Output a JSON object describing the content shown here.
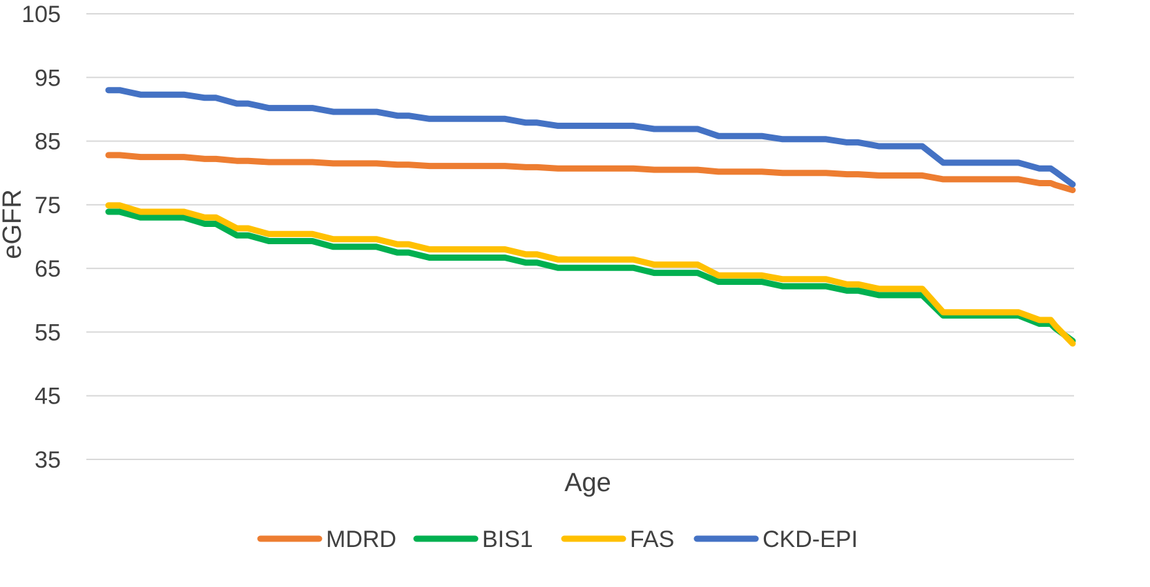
{
  "chart_data": {
    "type": "line",
    "title": "",
    "xlabel": "Age",
    "ylabel": "eGFR",
    "ylim": [
      35,
      105
    ],
    "yticks": [
      105,
      95,
      85,
      75,
      65,
      55,
      45,
      35
    ],
    "grid": true,
    "legend_position": "bottom",
    "x": [
      0,
      1,
      2,
      3,
      4,
      5,
      6,
      7,
      8,
      9,
      10,
      11,
      12,
      13,
      14,
      15,
      16,
      17,
      18,
      19,
      20,
      21,
      22,
      23,
      24,
      25,
      26,
      27,
      28,
      29
    ],
    "series": [
      {
        "name": "MDRD",
        "color": "#ED7D31",
        "values": [
          82.8,
          82.5,
          82.5,
          82.2,
          81.9,
          81.7,
          81.7,
          81.5,
          81.5,
          81.3,
          81.1,
          81.1,
          81.1,
          80.9,
          80.7,
          80.7,
          80.7,
          80.5,
          80.5,
          80.2,
          80.2,
          80.0,
          80.0,
          79.8,
          79.6,
          79.6,
          79.0,
          79.0,
          79.0,
          78.4
        ]
      },
      {
        "name": "BIS1",
        "color": "#00B050",
        "values": [
          73.9,
          73.0,
          73.0,
          72.0,
          70.2,
          69.3,
          69.3,
          68.4,
          68.4,
          67.5,
          66.7,
          66.7,
          66.7,
          65.9,
          65.1,
          65.1,
          65.1,
          64.3,
          64.3,
          62.9,
          62.9,
          62.2,
          62.2,
          61.5,
          60.8,
          60.8,
          57.6,
          57.6,
          57.6,
          56.3
        ]
      },
      {
        "name": "FAS",
        "color": "#FFC000",
        "values": [
          74.9,
          73.9,
          73.9,
          73.0,
          71.3,
          70.4,
          70.4,
          69.6,
          69.6,
          68.8,
          68.0,
          68.0,
          68.0,
          67.2,
          66.4,
          66.4,
          66.4,
          65.6,
          65.6,
          63.9,
          63.9,
          63.3,
          63.3,
          62.5,
          61.8,
          61.8,
          58.1,
          58.1,
          58.1,
          56.9
        ]
      },
      {
        "name": "CKD-EPI",
        "color": "#4472C4",
        "values": [
          93.0,
          92.3,
          92.3,
          91.8,
          90.9,
          90.2,
          90.2,
          89.6,
          89.6,
          89.0,
          88.5,
          88.5,
          88.5,
          87.9,
          87.4,
          87.4,
          87.4,
          86.9,
          86.9,
          85.8,
          85.8,
          85.3,
          85.3,
          84.8,
          84.2,
          84.2,
          81.6,
          81.6,
          81.6,
          80.7
        ]
      }
    ],
    "final_values": {
      "MDRD": [
        78.1,
        77.3
      ],
      "BIS1": [
        55.6,
        53.6
      ],
      "FAS": [
        56.0,
        53.2
      ],
      "CKD-EPI": [
        80.2,
        78.2
      ]
    }
  }
}
